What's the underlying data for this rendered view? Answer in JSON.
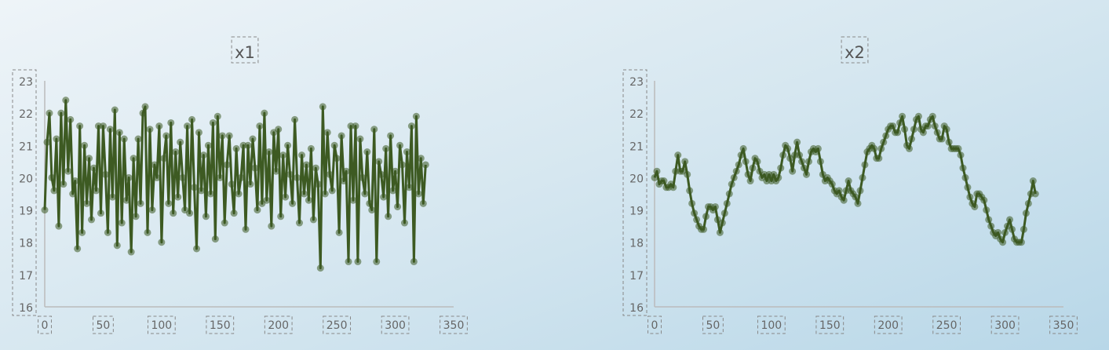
{
  "chart_data": [
    {
      "type": "line",
      "title": "x1",
      "xlim": [
        0,
        350
      ],
      "ylim": [
        16,
        23
      ],
      "xticks": [
        "0",
        "50",
        "100",
        "150",
        "200",
        "250",
        "300",
        "350"
      ],
      "yticks": [
        "16",
        "17",
        "18",
        "19",
        "20",
        "21",
        "22",
        "23"
      ],
      "color": "#3d5a22",
      "grid": false,
      "x": [
        0,
        2,
        4,
        6,
        8,
        10,
        12,
        14,
        16,
        18,
        20,
        22,
        24,
        26,
        28,
        30,
        32,
        34,
        36,
        38,
        40,
        42,
        44,
        46,
        48,
        50,
        52,
        54,
        56,
        58,
        60,
        62,
        64,
        66,
        68,
        70,
        72,
        74,
        76,
        78,
        80,
        82,
        84,
        86,
        88,
        90,
        92,
        94,
        96,
        98,
        100,
        102,
        104,
        106,
        108,
        110,
        112,
        114,
        116,
        118,
        120,
        122,
        124,
        126,
        128,
        130,
        132,
        134,
        136,
        138,
        140,
        142,
        144,
        146,
        148,
        150,
        152,
        154,
        156,
        158,
        160,
        162,
        164,
        166,
        168,
        170,
        172,
        174,
        176,
        178,
        180,
        182,
        184,
        186,
        188,
        190,
        192,
        194,
        196,
        198,
        200,
        202,
        204,
        206,
        208,
        210,
        212,
        214,
        216,
        218,
        220,
        222,
        224,
        226,
        228,
        230,
        232,
        234,
        236,
        238,
        240,
        242,
        244,
        246,
        248,
        250,
        252,
        254,
        256,
        258,
        260,
        262,
        264,
        266,
        268,
        270,
        272,
        274,
        276,
        278,
        280,
        282,
        284,
        286,
        288,
        290,
        292,
        294,
        296,
        298,
        300,
        302,
        304,
        306,
        308,
        310,
        312,
        314,
        316,
        318,
        320,
        322,
        324,
        326
      ],
      "y": [
        19.0,
        21.1,
        22.0,
        20.0,
        19.6,
        21.2,
        18.5,
        22.0,
        19.8,
        22.4,
        20.2,
        21.8,
        19.5,
        19.9,
        17.8,
        21.6,
        18.3,
        21.0,
        19.2,
        20.6,
        18.7,
        20.3,
        19.6,
        21.6,
        18.9,
        21.6,
        20.1,
        18.3,
        21.5,
        19.4,
        22.1,
        17.9,
        21.4,
        18.6,
        21.2,
        19.3,
        20.0,
        17.7,
        20.6,
        18.8,
        21.2,
        19.2,
        22.0,
        22.2,
        18.3,
        21.5,
        19.0,
        20.4,
        20.0,
        21.6,
        18.0,
        20.6,
        21.3,
        19.2,
        21.7,
        18.9,
        20.8,
        19.4,
        21.1,
        20.0,
        19.0,
        21.6,
        18.9,
        21.8,
        19.7,
        17.8,
        21.4,
        19.6,
        20.7,
        18.8,
        21.0,
        19.5,
        21.7,
        18.1,
        21.9,
        20.0,
        21.3,
        18.6,
        20.4,
        21.3,
        19.8,
        18.9,
        20.9,
        19.5,
        20.0,
        21.0,
        18.4,
        21.0,
        19.8,
        21.2,
        20.3,
        19.0,
        21.6,
        19.2,
        22.0,
        19.3,
        20.8,
        18.5,
        21.4,
        20.2,
        21.5,
        18.8,
        20.7,
        19.4,
        21.0,
        20.1,
        19.2,
        21.8,
        20.0,
        18.6,
        20.7,
        19.5,
        20.4,
        19.3,
        20.9,
        18.7,
        20.3,
        19.8,
        17.2,
        22.2,
        19.5,
        21.4,
        20.1,
        19.6,
        21.0,
        20.6,
        18.3,
        21.3,
        19.9,
        20.2,
        17.4,
        21.6,
        19.3,
        21.6,
        17.4,
        21.2,
        20.0,
        19.5,
        20.8,
        19.2,
        19.0,
        21.5,
        17.4,
        20.5,
        20.1,
        19.4,
        20.9,
        18.8,
        21.3,
        19.6,
        20.2,
        19.1,
        21.0,
        20.4,
        18.6,
        20.8,
        19.7,
        21.6,
        17.4,
        21.9,
        19.5,
        20.6,
        19.2,
        20.4
      ]
    },
    {
      "type": "line",
      "title": "x2",
      "xlim": [
        0,
        350
      ],
      "ylim": [
        16,
        23
      ],
      "xticks": [
        "0",
        "50",
        "100",
        "150",
        "200",
        "250",
        "300",
        "350"
      ],
      "yticks": [
        "16",
        "17",
        "18",
        "19",
        "20",
        "21",
        "22",
        "23"
      ],
      "color": "#3d5a22",
      "grid": false,
      "x": [
        0,
        2,
        4,
        6,
        8,
        10,
        12,
        14,
        16,
        18,
        20,
        22,
        24,
        26,
        28,
        30,
        32,
        34,
        36,
        38,
        40,
        42,
        44,
        46,
        48,
        50,
        52,
        54,
        56,
        58,
        60,
        62,
        64,
        66,
        68,
        70,
        72,
        74,
        76,
        78,
        80,
        82,
        84,
        86,
        88,
        90,
        92,
        94,
        96,
        98,
        100,
        102,
        104,
        106,
        108,
        110,
        112,
        114,
        116,
        118,
        120,
        122,
        124,
        126,
        128,
        130,
        132,
        134,
        136,
        138,
        140,
        142,
        144,
        146,
        148,
        150,
        152,
        154,
        156,
        158,
        160,
        162,
        164,
        166,
        168,
        170,
        172,
        174,
        176,
        178,
        180,
        182,
        184,
        186,
        188,
        190,
        192,
        194,
        196,
        198,
        200,
        202,
        204,
        206,
        208,
        210,
        212,
        214,
        216,
        218,
        220,
        222,
        224,
        226,
        228,
        230,
        232,
        234,
        236,
        238,
        240,
        242,
        244,
        246,
        248,
        250,
        252,
        254,
        256,
        258,
        260,
        262,
        264,
        266,
        268,
        270,
        272,
        274,
        276,
        278,
        280,
        282,
        284,
        286,
        288,
        290,
        292,
        294,
        296,
        298,
        300,
        302,
        304,
        306,
        308,
        310,
        312,
        314,
        316,
        318,
        320,
        322,
        324,
        326
      ],
      "y": [
        20.0,
        20.2,
        19.8,
        19.9,
        19.9,
        19.7,
        19.7,
        19.8,
        19.7,
        20.2,
        20.7,
        20.2,
        20.2,
        20.5,
        20.1,
        19.6,
        19.2,
        18.9,
        18.7,
        18.5,
        18.4,
        18.4,
        18.8,
        19.1,
        19.1,
        19.0,
        19.1,
        18.7,
        18.3,
        18.6,
        18.9,
        19.2,
        19.5,
        19.8,
        20.0,
        20.2,
        20.4,
        20.7,
        20.9,
        20.5,
        20.1,
        19.9,
        20.3,
        20.6,
        20.5,
        20.2,
        20.0,
        20.1,
        19.9,
        20.1,
        19.9,
        20.1,
        19.9,
        20.0,
        20.3,
        20.7,
        21.0,
        20.9,
        20.6,
        20.2,
        20.7,
        21.1,
        20.7,
        20.5,
        20.3,
        20.1,
        20.5,
        20.8,
        20.9,
        20.8,
        20.9,
        20.5,
        20.1,
        19.9,
        20.0,
        19.9,
        19.8,
        19.6,
        19.5,
        19.6,
        19.4,
        19.3,
        19.6,
        19.9,
        19.6,
        19.5,
        19.4,
        19.2,
        19.6,
        20.0,
        20.4,
        20.8,
        20.9,
        21.0,
        20.9,
        20.6,
        20.6,
        20.9,
        21.1,
        21.3,
        21.5,
        21.6,
        21.6,
        21.4,
        21.4,
        21.7,
        21.9,
        21.5,
        21.0,
        20.9,
        21.2,
        21.5,
        21.8,
        21.9,
        21.5,
        21.4,
        21.6,
        21.6,
        21.8,
        21.9,
        21.6,
        21.4,
        21.2,
        21.2,
        21.6,
        21.5,
        21.1,
        20.9,
        20.9,
        20.9,
        20.9,
        20.7,
        20.3,
        20.0,
        19.7,
        19.4,
        19.2,
        19.1,
        19.5,
        19.5,
        19.4,
        19.3,
        19.0,
        18.7,
        18.5,
        18.3,
        18.2,
        18.3,
        18.1,
        18.0,
        18.3,
        18.5,
        18.7,
        18.4,
        18.1,
        18.0,
        18.0,
        18.0,
        18.4,
        18.9,
        19.2,
        19.5,
        19.9,
        19.5
      ]
    }
  ]
}
